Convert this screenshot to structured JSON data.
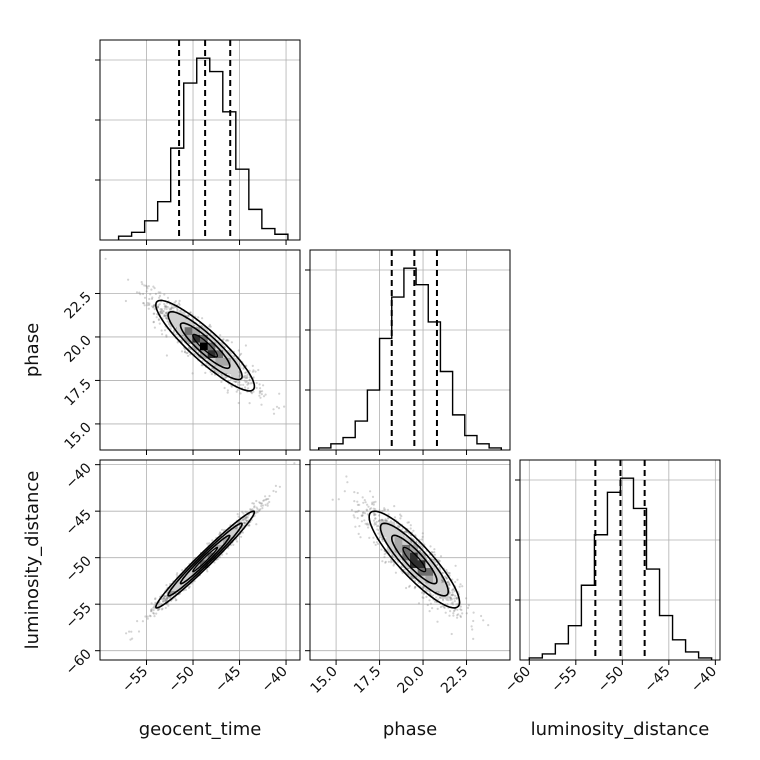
{
  "chart_data": {
    "type": "corner",
    "parameters": [
      {
        "name": "geocent_time",
        "label": "geocent_time",
        "range": [
          -60,
          -38.5
        ],
        "ticks": [
          -55,
          -50,
          -45,
          -40
        ],
        "tick_labels": [
          "−55",
          "−50",
          "−45",
          "−40"
        ],
        "quantiles": [
          -51.5,
          -48.7,
          -46.0
        ],
        "hist_edges": [
          -58.0,
          -56.6,
          -55.2,
          -53.8,
          -52.4,
          -51.0,
          -49.6,
          -48.2,
          -46.8,
          -45.4,
          -44.0,
          -42.6,
          -41.2,
          -39.8
        ],
        "hist_counts": [
          2,
          4,
          10,
          20,
          48,
          82,
          95,
          88,
          67,
          37,
          16,
          6,
          3
        ]
      },
      {
        "name": "phase",
        "label": "phase",
        "range": [
          13.5,
          25.0
        ],
        "ticks": [
          15.0,
          17.5,
          20.0,
          22.5
        ],
        "tick_labels": [
          "15.0",
          "17.5",
          "20.0",
          "22.5"
        ],
        "quantiles": [
          18.2,
          19.5,
          20.8
        ],
        "hist_edges": [
          14.0,
          14.7,
          15.4,
          16.1,
          16.8,
          17.5,
          18.2,
          18.9,
          19.6,
          20.3,
          21.0,
          21.7,
          22.4,
          23.1,
          23.8,
          24.5
        ],
        "hist_counts": [
          1,
          3,
          6,
          14,
          29,
          54,
          74,
          88,
          80,
          62,
          38,
          17,
          7,
          3,
          1
        ]
      },
      {
        "name": "luminosity_distance",
        "label": "luminosity_distance",
        "range": [
          -61,
          -39.5
        ],
        "ticks": [
          -60,
          -55,
          -50,
          -45,
          -40
        ],
        "tick_labels": [
          "−60",
          "−55",
          "−50",
          "−45",
          "−40"
        ],
        "quantiles": [
          -52.9,
          -50.2,
          -47.6
        ],
        "hist_edges": [
          -60.0,
          -58.6,
          -57.2,
          -55.8,
          -54.4,
          -53.0,
          -51.6,
          -50.2,
          -48.8,
          -47.4,
          -46.0,
          -44.6,
          -43.2,
          -41.8,
          -40.4
        ],
        "hist_counts": [
          1,
          3,
          8,
          17,
          37,
          62,
          83,
          90,
          75,
          45,
          22,
          10,
          4,
          1
        ]
      }
    ],
    "pairs": [
      {
        "x": "geocent_time",
        "y": "phase",
        "mean": [
          -48.7,
          19.5
        ],
        "sd": [
          2.65,
          1.3
        ],
        "rho": -0.9
      },
      {
        "x": "geocent_time",
        "y": "luminosity_distance",
        "mean": [
          -48.7,
          -50.2
        ],
        "sd": [
          2.65,
          2.6
        ],
        "rho": 0.98
      },
      {
        "x": "phase",
        "y": "luminosity_distance",
        "mean": [
          19.5,
          -50.2
        ],
        "sd": [
          1.3,
          2.6
        ],
        "rho": -0.88
      }
    ],
    "contour_levels_sigma": [
      0.5,
      1.0,
      1.5,
      2.0
    ],
    "grid": true,
    "line_color": "#000000",
    "point_color": "#808080"
  }
}
